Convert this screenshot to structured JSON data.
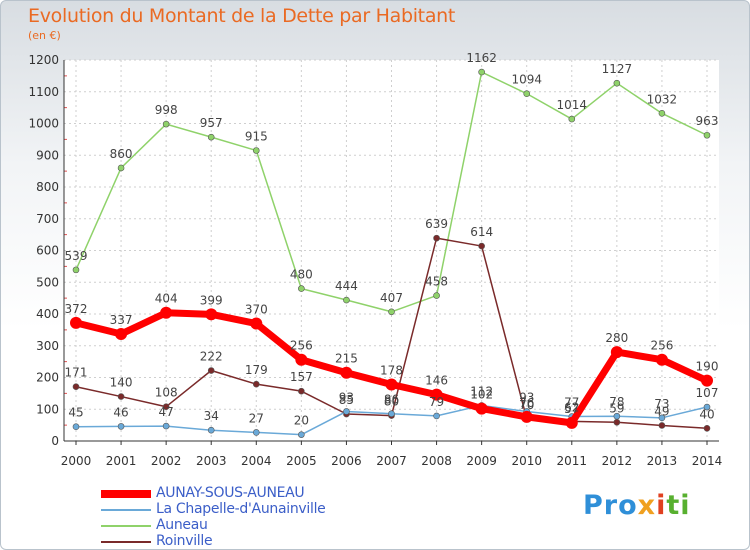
{
  "header": {
    "title": "Evolution du Montant de la Dette par Habitant",
    "subtitle": "(en €)"
  },
  "logo": {
    "text": "Proxiti",
    "parts": [
      "Pro",
      "x",
      "i",
      "ti"
    ]
  },
  "chart_data": {
    "type": "line",
    "title": "Evolution du Montant de la Dette par Habitant",
    "subtitle": "(en €)",
    "xlabel": "",
    "ylabel": "",
    "ylim": [
      0,
      1200
    ],
    "yticks": [
      0,
      100,
      200,
      300,
      400,
      500,
      600,
      700,
      800,
      900,
      1000,
      1100,
      1200
    ],
    "grid": true,
    "legend_position": "bottom-left",
    "x": [
      "2000",
      "2001",
      "2002",
      "2003",
      "2004",
      "2005",
      "2006",
      "2007",
      "2008",
      "2009",
      "2010",
      "2011",
      "2012",
      "2013",
      "2014"
    ],
    "series": [
      {
        "name": "AUNAY-SOUS-AUNEAU",
        "color": "#ff0000",
        "values": [
          372,
          337,
          404,
          399,
          370,
          256,
          215,
          178,
          146,
          102,
          76,
          57,
          280,
          256,
          190
        ]
      },
      {
        "name": "La Chapelle-d'Aunainville",
        "color": "#6aa9d8",
        "values": [
          45,
          46,
          47,
          34,
          27,
          20,
          93,
          86,
          79,
          112,
          93,
          77,
          78,
          73,
          107
        ]
      },
      {
        "name": "Auneau",
        "color": "#8fd26a",
        "values": [
          539,
          860,
          998,
          957,
          915,
          480,
          444,
          407,
          458,
          1162,
          1094,
          1014,
          1127,
          1032,
          963
        ]
      },
      {
        "name": "Roinville",
        "color": "#7a2a2a",
        "values": [
          171,
          140,
          108,
          222,
          179,
          157,
          85,
          80,
          639,
          614,
          70,
          62,
          59,
          49,
          40
        ]
      }
    ]
  }
}
